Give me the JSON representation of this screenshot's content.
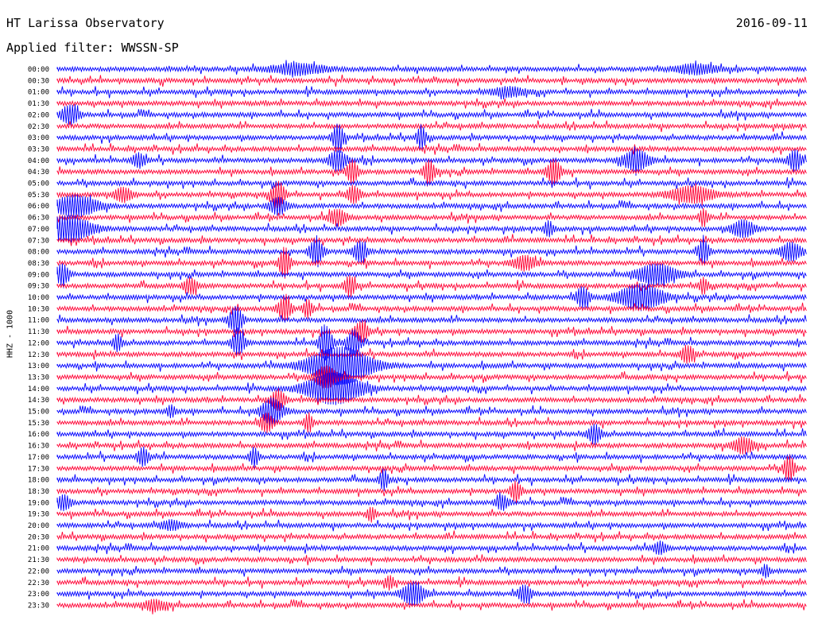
{
  "header": {
    "station": "HT Larissa Observatory",
    "date": "2016-09-11",
    "filter_label": "Applied filter: WWSSN-SP"
  },
  "axis": {
    "channel_label": "HHZ - 1000"
  },
  "colors": {
    "trace_a": "#0000ff",
    "trace_b": "#ff0033"
  },
  "chart_data": {
    "type": "line",
    "title": "HT Larissa Observatory",
    "subtitle": "Applied filter: WWSSN-SP",
    "ylabel": "HHZ - 1000",
    "row_labels": [
      "00:00",
      "00:30",
      "01:00",
      "01:30",
      "02:00",
      "02:30",
      "03:00",
      "03:30",
      "04:00",
      "04:30",
      "05:00",
      "05:30",
      "06:00",
      "06:30",
      "07:00",
      "07:30",
      "08:00",
      "08:30",
      "09:00",
      "09:30",
      "10:00",
      "10:30",
      "11:00",
      "11:30",
      "12:00",
      "12:30",
      "13:00",
      "13:30",
      "14:00",
      "14:30",
      "15:00",
      "15:30",
      "16:00",
      "16:30",
      "17:00",
      "17:30",
      "18:00",
      "18:30",
      "19:00",
      "19:30",
      "20:00",
      "20:30",
      "21:00",
      "21:30",
      "22:00",
      "22:30",
      "23:00",
      "23:30"
    ],
    "row_colors": [
      "blue",
      "red"
    ],
    "minutes_per_row": 30,
    "grid": false,
    "legend": "none"
  }
}
